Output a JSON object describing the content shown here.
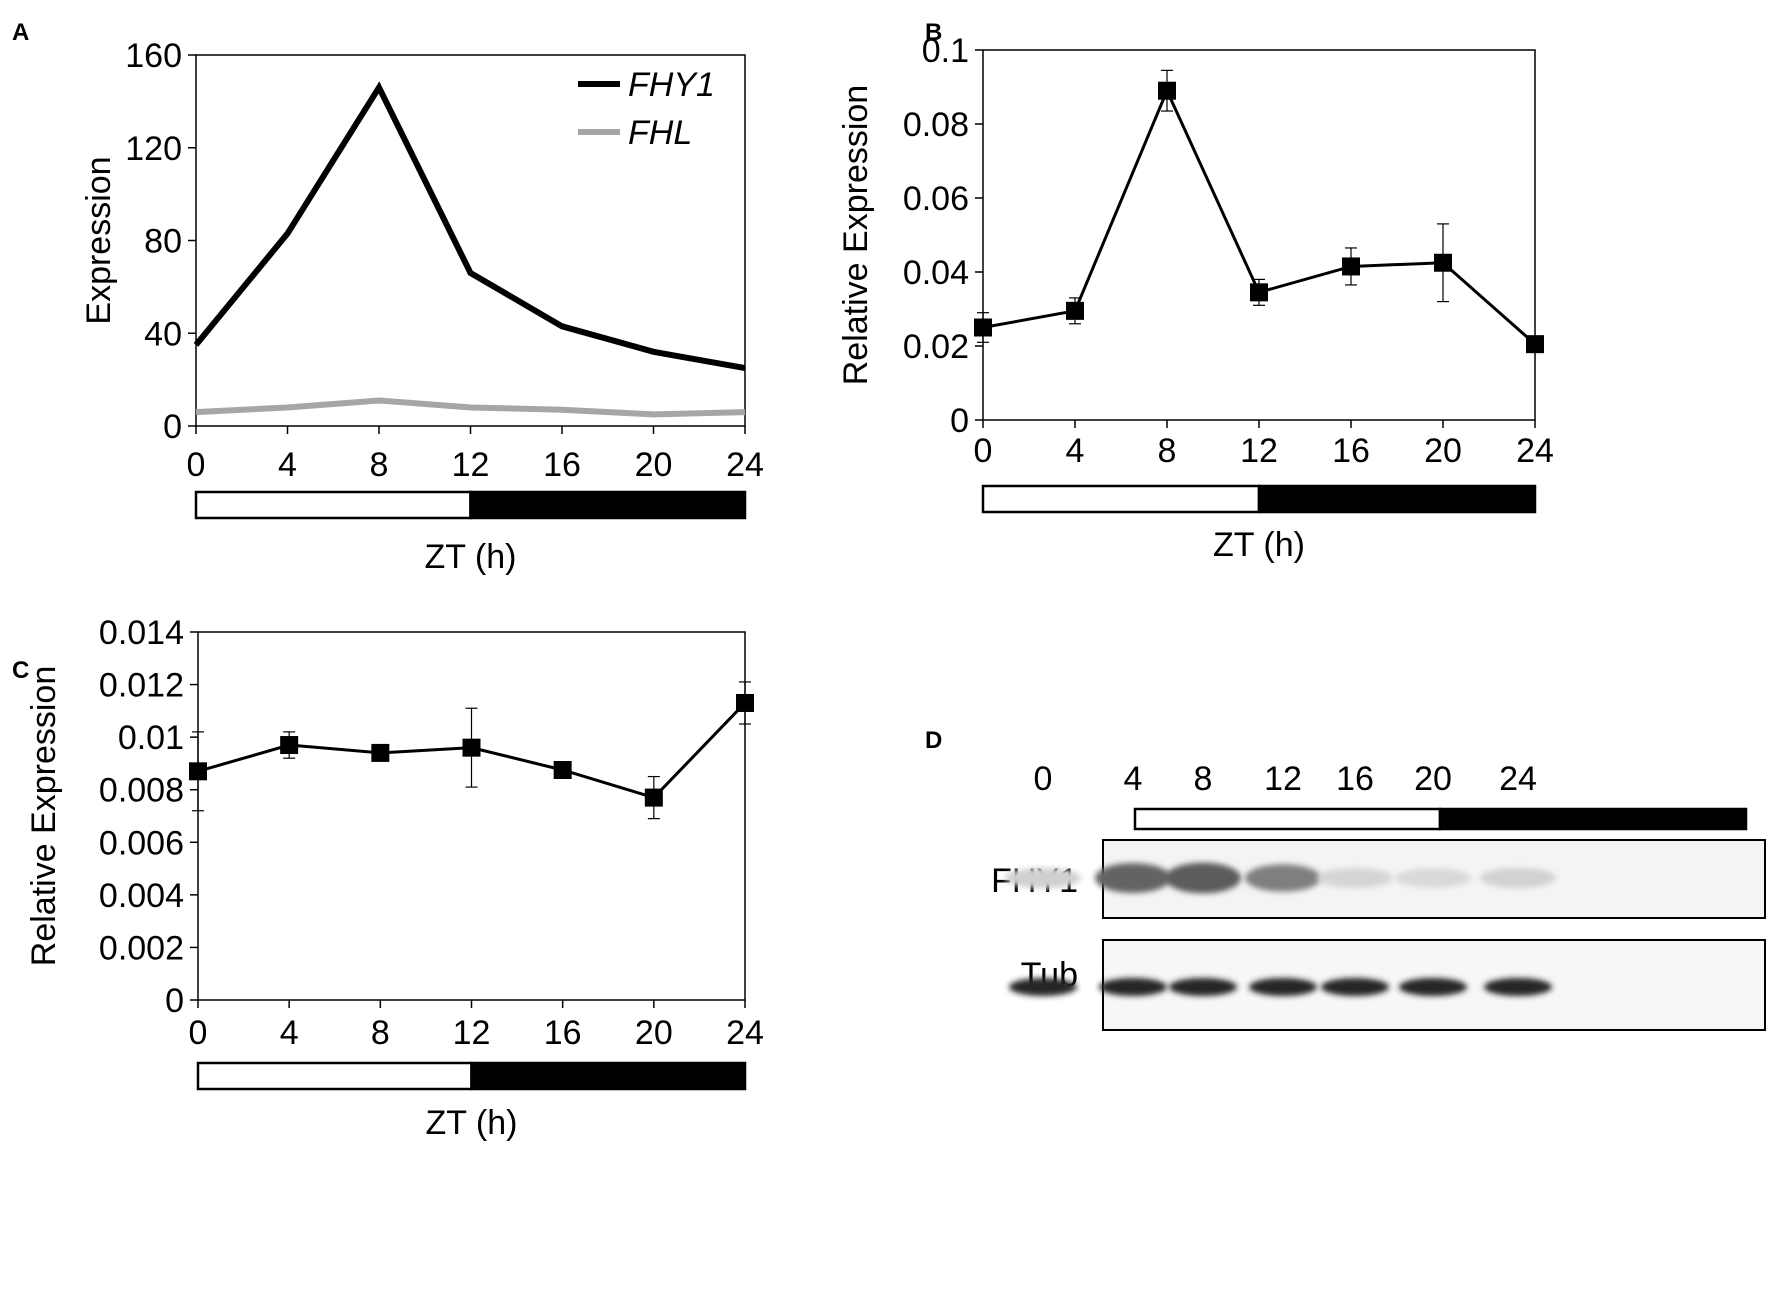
{
  "colors": {
    "fhy1_line": "#000000",
    "fhl_line": "#a6a6a6",
    "axis": "#000000",
    "light_bar": "#ffffff",
    "dark_bar": "#000000"
  },
  "chart_data": [
    {
      "panel": "A",
      "type": "line",
      "title": "",
      "xlabel": "ZT (h)",
      "ylabel": "Expression",
      "x": [
        0,
        4,
        8,
        12,
        16,
        20,
        24
      ],
      "xticks": [
        "0",
        "4",
        "8",
        "12",
        "16",
        "20",
        "24"
      ],
      "xlim": [
        0,
        24
      ],
      "ylim": [
        0,
        160
      ],
      "yticks": [
        "0",
        "40",
        "80",
        "120",
        "160"
      ],
      "yticks_values": [
        0,
        40,
        80,
        120,
        160
      ],
      "legend": "top-right",
      "series": [
        {
          "name": "FHY1",
          "values": [
            35,
            83,
            146,
            66,
            43,
            32,
            25
          ],
          "color": "#000000"
        },
        {
          "name": "FHL",
          "values": [
            6,
            8,
            11,
            8,
            7,
            5,
            6
          ],
          "color": "#a6a6a6"
        }
      ],
      "light_dark_bar": {
        "light_until": 12,
        "dark_from": 12
      }
    },
    {
      "panel": "B",
      "type": "line",
      "title": "",
      "xlabel": "ZT (h)",
      "ylabel": "Relative Expression",
      "x": [
        0,
        4,
        8,
        12,
        16,
        20,
        24
      ],
      "xticks": [
        "0",
        "4",
        "8",
        "12",
        "16",
        "20",
        "24"
      ],
      "xlim": [
        0,
        24
      ],
      "ylim": [
        0,
        0.1
      ],
      "yticks": [
        "0",
        "0.02",
        "0.04",
        "0.06",
        "0.08",
        "0.1"
      ],
      "yticks_values": [
        0,
        0.02,
        0.04,
        0.06,
        0.08,
        0.1
      ],
      "markers": "square",
      "series": [
        {
          "name": "Relative Expression",
          "values": [
            0.025,
            0.0295,
            0.089,
            0.0345,
            0.0415,
            0.0425,
            0.0205
          ],
          "errors": [
            0.004,
            0.0035,
            0.0055,
            0.0035,
            0.005,
            0.0105,
            0.001
          ],
          "color": "#000000"
        }
      ],
      "light_dark_bar": {
        "light_until": 12,
        "dark_from": 12
      }
    },
    {
      "panel": "C",
      "type": "line",
      "title": "",
      "xlabel": "ZT (h)",
      "ylabel": "Relative Expression",
      "x": [
        0,
        4,
        8,
        12,
        16,
        20,
        24
      ],
      "xticks": [
        "0",
        "4",
        "8",
        "12",
        "16",
        "20",
        "24"
      ],
      "xlim": [
        0,
        24
      ],
      "ylim": [
        0,
        0.014
      ],
      "yticks": [
        "0",
        "0.002",
        "0.004",
        "0.006",
        "0.008",
        "0.01",
        "0.012",
        "0.014"
      ],
      "yticks_values": [
        0,
        0.002,
        0.004,
        0.006,
        0.008,
        0.01,
        0.012,
        0.014
      ],
      "markers": "square",
      "series": [
        {
          "name": "Relative Expression",
          "values": [
            0.0087,
            0.0097,
            0.0094,
            0.0096,
            0.00875,
            0.0077,
            0.0113
          ],
          "errors": [
            0.0015,
            0.0005,
            0.0002,
            0.0015,
            0.0002,
            0.0008,
            0.0008
          ],
          "color": "#000000"
        }
      ],
      "light_dark_bar": {
        "light_until": 12,
        "dark_from": 12
      }
    }
  ],
  "blot": {
    "panel": "D",
    "lanes": [
      "0",
      "4",
      "8",
      "12",
      "16",
      "20",
      "24"
    ],
    "rows": [
      "FHY1",
      "Tub"
    ],
    "fhy1_band_intensity": [
      0.15,
      0.75,
      0.8,
      0.6,
      0.12,
      0.1,
      0.14
    ],
    "tub_band_intensity": [
      0.95,
      0.95,
      0.95,
      0.95,
      0.95,
      0.95,
      0.95
    ],
    "light_dark_bar": {
      "light_lanes": 4,
      "dark_lanes": 3
    }
  }
}
